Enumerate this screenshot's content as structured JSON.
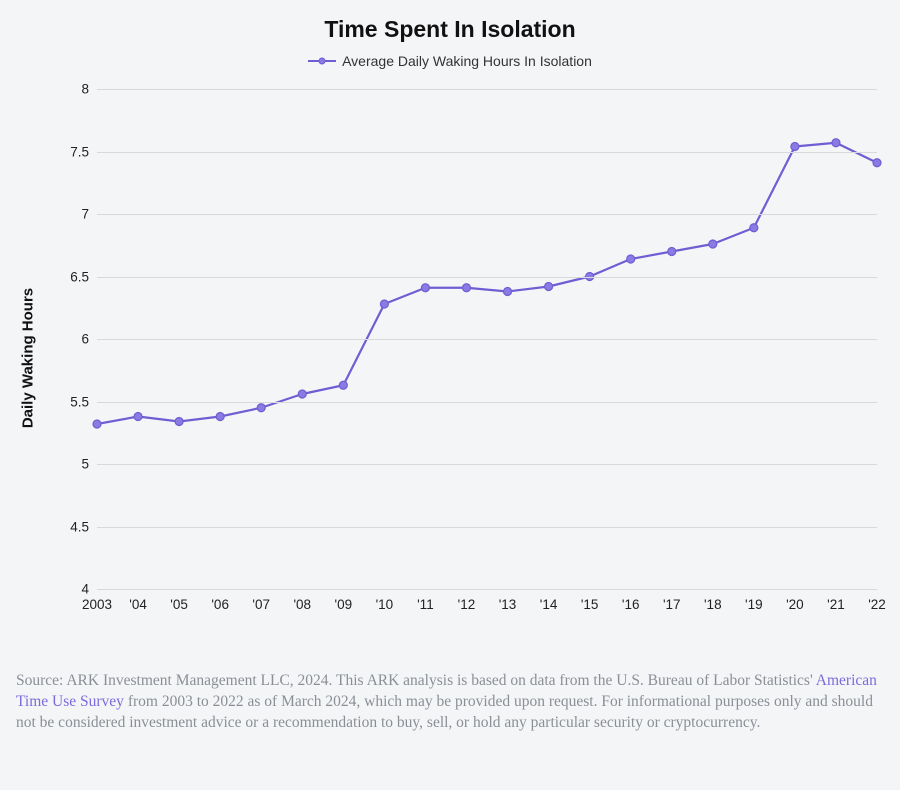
{
  "chart": {
    "type": "line",
    "title": "Time Spent In Isolation",
    "title_fontsize": 23,
    "legend": {
      "label": "Average Daily Waking Hours In Isolation",
      "fontsize": 14
    },
    "ylabel": "Daily Waking Hours",
    "ylabel_fontsize": 15,
    "background_color": "#f4f5f7",
    "grid_color": "#d8d9dc",
    "tick_fontsize": 13.5,
    "series_color": "#6f5ed3",
    "marker_fill": "#8b7ae3",
    "line_width": 2.2,
    "marker_radius": 4,
    "marker_style": "circle",
    "ylim": [
      4,
      8
    ],
    "ytick_step": 0.5,
    "yticks": [
      4,
      4.5,
      5,
      5.5,
      6,
      6.5,
      7,
      7.5,
      8
    ],
    "x_labels": [
      "2003",
      "'04",
      "'05",
      "'06",
      "'07",
      "'08",
      "'09",
      "'10",
      "'11",
      "'12",
      "'13",
      "'14",
      "'15",
      "'16",
      "'17",
      "'18",
      "'19",
      "'20",
      "'21",
      "'22"
    ],
    "values": [
      5.32,
      5.38,
      5.34,
      5.38,
      5.45,
      5.56,
      5.63,
      6.28,
      6.41,
      6.41,
      6.38,
      6.42,
      6.5,
      6.64,
      6.7,
      6.76,
      6.89,
      7.54,
      7.57,
      7.41
    ]
  },
  "source": {
    "prefix": "Source: ARK Investment Management LLC, 2024. This ARK analysis is based on data from the U.S. Bureau of Labor Statistics' ",
    "link_text": "American Time Use Survey",
    "suffix": " from 2003 to 2022 as of March 2024, which may be provided upon request. For informational purposes only and should not be considered investment advice or a recommendation to buy, sell, or hold any particular security or cryptocurrency.",
    "fontsize": 15.5
  }
}
